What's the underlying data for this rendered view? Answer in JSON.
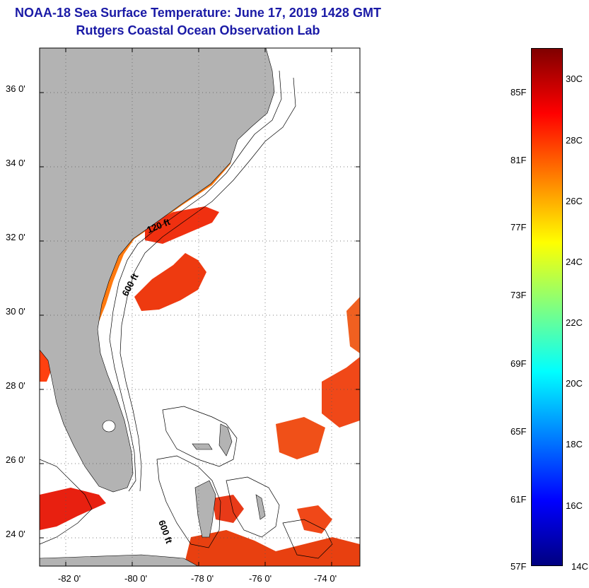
{
  "header": {
    "title": "NOAA-18 Sea Surface Temperature:  June 17, 2019 1428 GMT",
    "subtitle": "Rutgers Coastal Ocean Observation Lab"
  },
  "map": {
    "lon_range": [
      -83,
      -73
    ],
    "lat_range": [
      23,
      37
    ],
    "lon_ticks": [
      "-82 0'",
      "-80 0'",
      "-78 0'",
      "-76 0'",
      "-74 0'"
    ],
    "lat_ticks": [
      "36 0'",
      "34 0'",
      "32 0'",
      "30 0'",
      "28 0'",
      "26 0'",
      "24 0'"
    ],
    "land_color": "#b3b3b3",
    "grid": "dotted",
    "contour_labels": [
      "120 ft",
      "600 ft",
      "600 ft"
    ]
  },
  "colorbar": {
    "fahrenheit_labels": [
      "85F",
      "81F",
      "77F",
      "73F",
      "69F",
      "65F",
      "61F",
      "57F"
    ],
    "celsius_labels": [
      "30C",
      "28C",
      "26C",
      "24C",
      "22C",
      "20C",
      "18C",
      "16C",
      "14C"
    ],
    "colors": [
      "#800000",
      "#ff0000",
      "#ff8000",
      "#ffff00",
      "#80ff80",
      "#00ffff",
      "#0080ff",
      "#0000ff",
      "#000080"
    ]
  }
}
